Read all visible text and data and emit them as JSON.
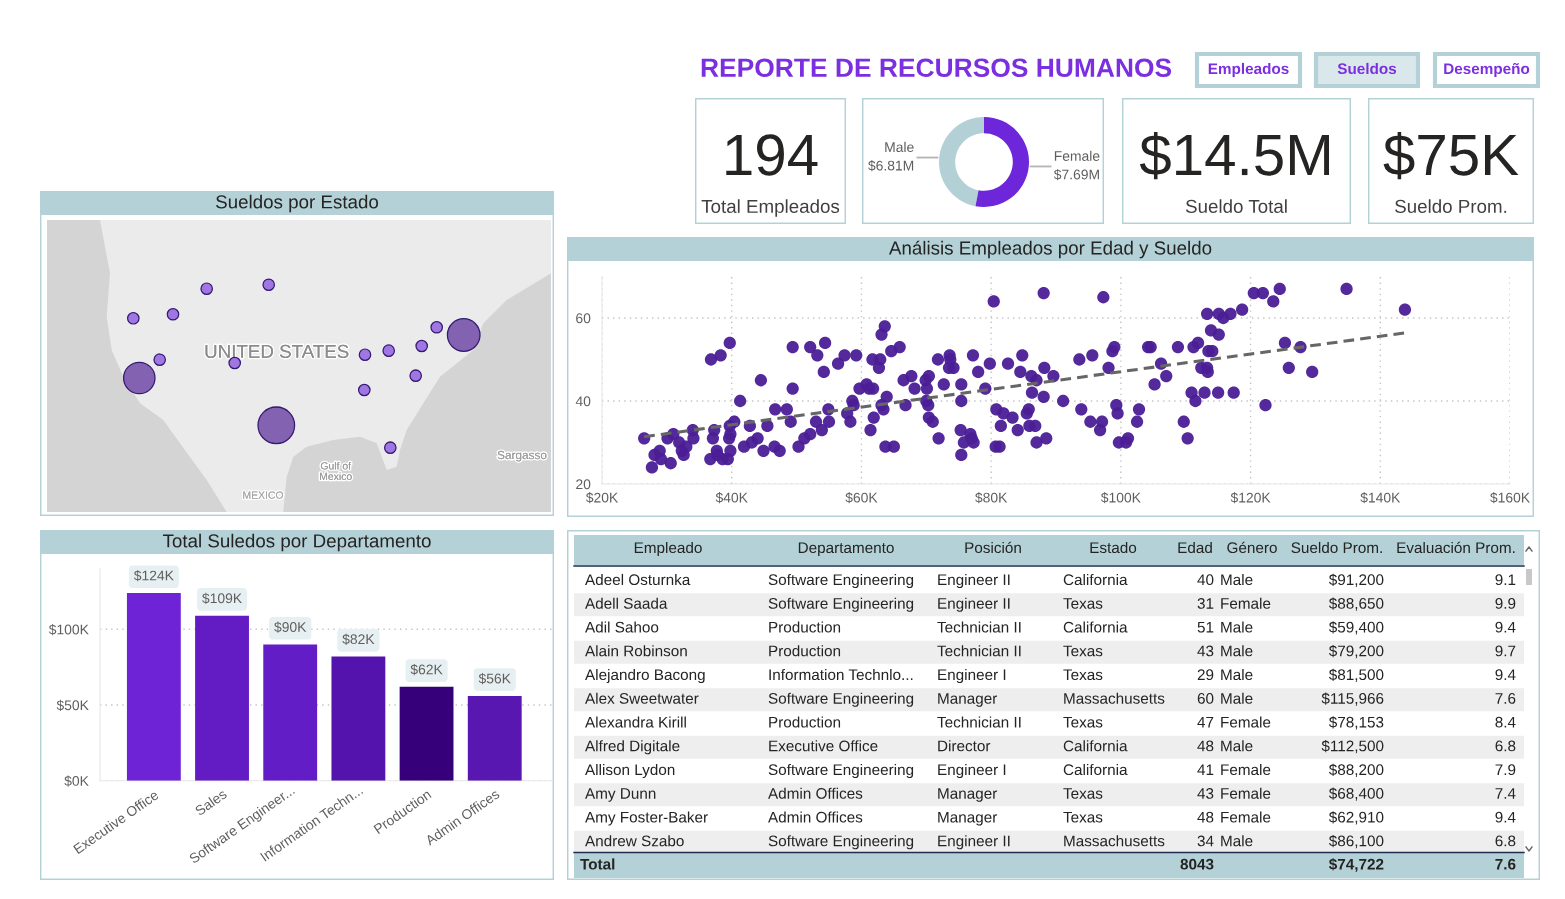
{
  "chart_data": [
    {
      "type": "other",
      "title": "REPORTE DE RECURSOS HUMANOS",
      "annotations": [
        "Empleados",
        "Sueldos",
        "Desempeño"
      ]
    },
    {
      "type": "other",
      "annotations": [
        "194",
        "Total Empleados"
      ]
    },
    {
      "type": "donut",
      "categories": [
        "Male",
        "Female"
      ],
      "values": [
        6.81,
        7.69
      ],
      "colors": [
        "#b3d0d6",
        "#6d26d9"
      ],
      "value_labels": [
        "$6.81M",
        "$7.69M"
      ]
    },
    {
      "type": "other",
      "annotations": [
        "$14.5M",
        "Sueldo Total"
      ]
    },
    {
      "type": "other",
      "annotations": [
        "$75K",
        "Sueldo Prom."
      ]
    },
    {
      "type": "other",
      "title": "Sueldos por Estado",
      "annotations": [
        "UNITED STATES",
        "Gulf of\nMexico",
        "MEXICO",
        "Sargasso"
      ]
    },
    {
      "type": "scatter",
      "title": "Análisis Empleados por Edad y Sueldo",
      "grid": true,
      "xlim": [
        20,
        160
      ],
      "xticks": [
        {
          "value": 20,
          "label": "$20K"
        },
        {
          "value": 40,
          "label": "$40K"
        },
        {
          "value": 60,
          "label": "$60K"
        },
        {
          "value": 80,
          "label": "$80K"
        },
        {
          "value": 100,
          "label": "$100K"
        },
        {
          "value": 120,
          "label": "$120K"
        },
        {
          "value": 140,
          "label": "$140K"
        },
        {
          "value": 160,
          "label": "$160K"
        }
      ],
      "ylim": [
        20,
        70
      ],
      "yticks": [
        20,
        40,
        60
      ],
      "series": [
        {
          "type": "scatter",
          "color": "#4b1d96",
          "marker": "circle",
          "x": [
            26.5,
            27.7,
            28.1,
            28.9,
            29.1,
            30.1,
            30.6,
            31.0,
            31.9,
            32.3,
            32.6,
            33.0,
            34.0,
            34.1,
            36.7,
            36.8,
            37.1,
            37.3,
            37.7,
            37.8,
            38.3,
            38.6,
            39.4,
            39.6,
            39.7,
            39.7,
            39.8,
            39.8,
            40.4,
            41.3,
            41.9,
            42.8,
            43.1,
            44.0,
            44.5,
            44.9,
            45.5,
            46.6,
            46.7,
            47.4,
            48.5,
            49.1,
            49.4,
            49.4,
            50.3,
            51.2,
            52.1,
            52.1,
            53.0,
            53.2,
            53.9,
            54.2,
            54.4,
            54.9,
            55.0,
            56.4,
            57.4,
            57.8,
            58.3,
            58.6,
            58.8,
            59.2,
            59.7,
            60.8,
            61.2,
            61.4,
            61.8,
            61.7,
            61.9,
            62.7,
            62.9,
            63.1,
            63.1,
            63.4,
            63.6,
            63.7,
            63.9,
            64.6,
            65.0,
            65.9,
            66.5,
            66.8,
            67.7,
            68.2,
            69.9,
            70.0,
            70.1,
            70.4,
            70.3,
            70.4,
            71.0,
            71.8,
            71.9,
            72.7,
            73.5,
            73.6,
            73.7,
            74.2,
            75.4,
            75.4,
            75.3,
            75.4,
            75.8,
            76.8,
            77.0,
            77.3,
            77.2,
            78.0,
            79.1,
            79.8,
            80.4,
            80.8,
            80.7,
            81.3,
            81.5,
            81.9,
            82.6,
            83.3,
            84.1,
            84.5,
            84.8,
            85.5,
            85.8,
            85.9,
            86.2,
            86.3,
            86.8,
            87.0,
            87.0,
            88.1,
            88.2,
            88.1,
            88.5,
            89.6,
            91.1,
            93.6,
            93.9,
            95.3,
            95.6,
            96.8,
            97.1,
            97.3,
            98.1,
            98.7,
            99.0,
            99.3,
            99.5,
            99.7,
            100.8,
            101.1,
            102.5,
            102.8,
            104.2,
            104.6,
            105.2,
            106.2,
            107.0,
            108.8,
            109.7,
            110.3,
            110.9,
            111.2,
            111.5,
            111.9,
            112.4,
            112.9,
            113.3,
            113.4,
            113.3,
            113.5,
            114.1,
            113.9,
            115.0,
            115.1,
            115.1,
            115.8,
            116.9,
            117.4,
            118.7,
            120.5,
            121.9,
            122.3,
            123.5,
            124.5,
            125.3,
            125.9,
            127.7,
            129.5,
            134.8,
            143.8
          ],
          "values": [
            31,
            24,
            27,
            28,
            26,
            31,
            25,
            32,
            30,
            28,
            27,
            29,
            33,
            31,
            26,
            50,
            31,
            33,
            28,
            27,
            51,
            26,
            26,
            31,
            34,
            54,
            32,
            28,
            35,
            40,
            29,
            34,
            30,
            31,
            45,
            28,
            34,
            29,
            38,
            28,
            38,
            35,
            43,
            53,
            29,
            31,
            32,
            53,
            35,
            51,
            33,
            47,
            54,
            38,
            35,
            49,
            51,
            37,
            35,
            40,
            39,
            51,
            43,
            44,
            43,
            33,
            43,
            50,
            36,
            48,
            50,
            39,
            56,
            38,
            58,
            29,
            41,
            52,
            29,
            53,
            45,
            39,
            46,
            43,
            45,
            40,
            43,
            46,
            39,
            36,
            35,
            50,
            31,
            44,
            48,
            51,
            50,
            48,
            44,
            40,
            33,
            27,
            30,
            32,
            31,
            30,
            51,
            47,
            43,
            49,
            64,
            38,
            29,
            29,
            34,
            37,
            49,
            36,
            33,
            47,
            51,
            37,
            38,
            34,
            46,
            42,
            34,
            45,
            30,
            66,
            48,
            41,
            31,
            46,
            40,
            50,
            38,
            35,
            51,
            33,
            35,
            65,
            48,
            52,
            53,
            39,
            37,
            30,
            30,
            31,
            35,
            38,
            53,
            53,
            44,
            49,
            46,
            53,
            35,
            31,
            42,
            53,
            40,
            54,
            48,
            42,
            48,
            47,
            61,
            52,
            52,
            57,
            42,
            61,
            56,
            60,
            61,
            42,
            62,
            66,
            66,
            39,
            64,
            67,
            54,
            48,
            53,
            47,
            67,
            62
          ]
        },
        {
          "type": "line",
          "color": "#666666",
          "line_style": "dashed",
          "x": [
            26.5,
            143.8
          ],
          "values": [
            31.4,
            56.4
          ]
        }
      ]
    },
    {
      "type": "bar",
      "title": "Total Suledos por Departamento",
      "categories": [
        "Executive Office",
        "Sales",
        "Software Engineer...",
        "Information Techn...",
        "Production",
        "Admin Offices"
      ],
      "values": [
        124,
        109,
        90,
        82,
        62,
        56
      ],
      "colors": [
        "#6f23d6",
        "#631bc4",
        "#631dc6",
        "#5513ad",
        "#36007a",
        "#5917b2"
      ],
      "value_labels": [
        "$124K",
        "$109K",
        "$90K",
        "$82K",
        "$62K",
        "$56K"
      ],
      "ylim": [
        0,
        140
      ],
      "yticks": [
        {
          "value": 0,
          "label": "$0K"
        },
        {
          "value": 50,
          "label": "$50K"
        },
        {
          "value": 100,
          "label": "$100K"
        }
      ],
      "grid": "y"
    },
    {
      "type": "other",
      "categories": [
        "Empleado",
        "Departamento",
        "Posición",
        "Estado",
        "Edad",
        "Género",
        "Sueldo Prom.",
        "Evaluación Prom."
      ],
      "cell_labels": [
        [
          "Adeel Osturnka",
          "Software Engineering",
          "Engineer II",
          "California",
          "40",
          "Male",
          "$91,200",
          "9.1"
        ],
        [
          "Adell Saada",
          "Software Engineering",
          "Engineer II",
          "Texas",
          "31",
          "Female",
          "$88,650",
          "9.9"
        ],
        [
          "Adil Sahoo",
          "Production",
          "Technician II",
          "California",
          "51",
          "Male",
          "$59,400",
          "9.4"
        ],
        [
          "Alain Robinson",
          "Production",
          "Technician II",
          "Texas",
          "43",
          "Male",
          "$79,200",
          "9.7"
        ],
        [
          "Alejandro Bacong",
          "Information Technlo...",
          "Engineer I",
          "Texas",
          "29",
          "Male",
          "$81,500",
          "9.4"
        ],
        [
          "Alex Sweetwater",
          "Software Engineering",
          "Manager",
          "Massachusetts",
          "60",
          "Male",
          "$115,966",
          "7.6"
        ],
        [
          "Alexandra Kirill",
          "Production",
          "Technician II",
          "Texas",
          "47",
          "Female",
          "$78,153",
          "8.4"
        ],
        [
          "Alfred Digitale",
          "Executive Office",
          "Director",
          "California",
          "48",
          "Male",
          "$112,500",
          "6.8"
        ],
        [
          "Allison Lydon",
          "Software Engineering",
          "Engineer I",
          "California",
          "41",
          "Female",
          "$88,200",
          "7.9"
        ],
        [
          "Amy Dunn",
          "Admin Offices",
          "Manager",
          "Texas",
          "43",
          "Female",
          "$68,400",
          "7.4"
        ],
        [
          "Amy Foster-Baker",
          "Admin Offices",
          "Manager",
          "Texas",
          "48",
          "Female",
          "$62,910",
          "9.4"
        ],
        [
          "Andrew Szabo",
          "Software Engineering",
          "Engineer II",
          "Massachusetts",
          "34",
          "Male",
          "$86,100",
          "6.8"
        ]
      ],
      "totals": [
        "Total",
        null,
        null,
        null,
        "8043",
        null,
        "$74,722",
        "7.6"
      ]
    }
  ]
}
